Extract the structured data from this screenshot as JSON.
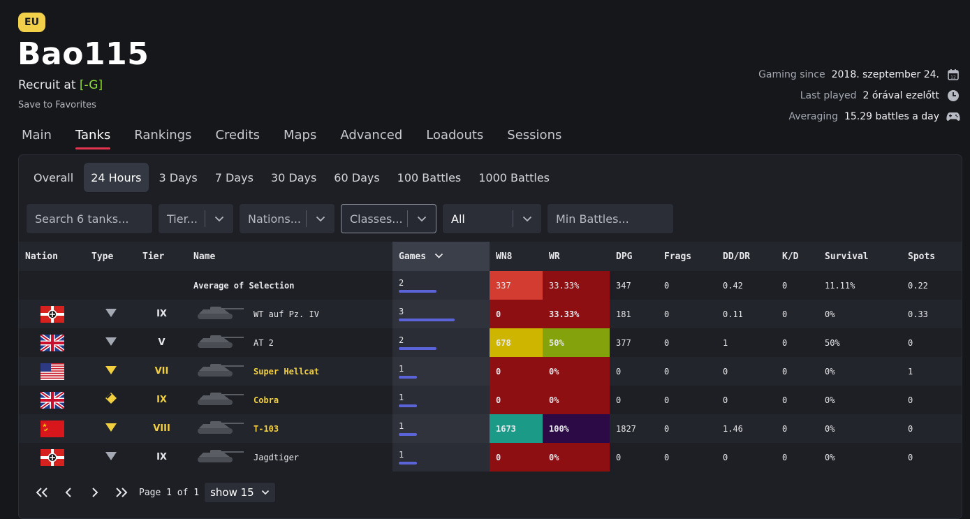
{
  "player": {
    "region": "EU",
    "name": "Bao115",
    "role_prefix": "Recruit at ",
    "clan": "[-G]",
    "save_label": "Save to Favorites"
  },
  "meta": [
    {
      "label": "Gaming since",
      "value": "2018. szeptember 24.",
      "icon": "calendar-icon"
    },
    {
      "label": "Last played",
      "value": "2 órával ezelőtt",
      "icon": "clock-icon"
    },
    {
      "label": "Averaging",
      "value": "15.29 battles a day",
      "icon": "gamepad-icon"
    }
  ],
  "main_tabs": [
    "Main",
    "Tanks",
    "Rankings",
    "Credits",
    "Maps",
    "Advanced",
    "Loadouts",
    "Sessions"
  ],
  "period_tabs": [
    "Overall",
    "24 Hours",
    "3 Days",
    "7 Days",
    "30 Days",
    "60 Days",
    "100 Battles",
    "1000 Battles"
  ],
  "filters": {
    "search_placeholder": "Search 6 tanks...",
    "tier": "Tier...",
    "nations": "Nations...",
    "classes": "Classes...",
    "premium": "All",
    "min_battles": "Min Battles..."
  },
  "table": {
    "headers": [
      "Nation",
      "Type",
      "Tier",
      "Name",
      "Games",
      "WN8",
      "WR",
      "DPG",
      "Frags",
      "DD/DR",
      "K/D",
      "Survival",
      "Spots"
    ],
    "average": {
      "name": "Average of Selection",
      "games": "2",
      "games_frac": 0.67,
      "wn8": "337",
      "wr": "33.33%",
      "dpg": "347",
      "frags": "0",
      "dddr": "0.42",
      "kd": "0",
      "survival": "11.11%",
      "spots": "0.22",
      "wn8_color": "#d23c31",
      "wr_color": "#8e0f12"
    },
    "rows": [
      {
        "nation": "germany",
        "type": "td",
        "tier": "IX",
        "name": "WT auf Pz. IV",
        "premium": false,
        "games": "3",
        "games_frac": 1.0,
        "wn8": "0",
        "wr": "33.33%",
        "dpg": "181",
        "frags": "0",
        "dddr": "0.11",
        "kd": "0",
        "survival": "0%",
        "spots": "0.33",
        "wn8_color": "#8e0f12",
        "wr_color": "#8e0f12"
      },
      {
        "nation": "uk",
        "type": "td",
        "tier": "V",
        "name": "AT 2",
        "premium": false,
        "games": "2",
        "games_frac": 0.67,
        "wn8": "678",
        "wr": "50%",
        "dpg": "377",
        "frags": "0",
        "dddr": "1",
        "kd": "0",
        "survival": "50%",
        "spots": "0",
        "wn8_color": "#cdb500",
        "wr_color": "#84a20b"
      },
      {
        "nation": "usa",
        "type": "td",
        "tier": "VII",
        "name": "Super Hellcat",
        "premium": true,
        "games": "1",
        "games_frac": 0.33,
        "wn8": "0",
        "wr": "0%",
        "dpg": "0",
        "frags": "0",
        "dddr": "0",
        "kd": "0",
        "survival": "0%",
        "spots": "1",
        "wn8_color": "#8e0f12",
        "wr_color": "#8e0f12"
      },
      {
        "nation": "uk",
        "type": "medium",
        "tier": "IX",
        "name": "Cobra",
        "premium": true,
        "games": "1",
        "games_frac": 0.33,
        "wn8": "0",
        "wr": "0%",
        "dpg": "0",
        "frags": "0",
        "dddr": "0",
        "kd": "0",
        "survival": "0%",
        "spots": "0",
        "wn8_color": "#8e0f12",
        "wr_color": "#8e0f12"
      },
      {
        "nation": "ussr",
        "type": "td",
        "tier": "VIII",
        "name": "T-103",
        "premium": true,
        "games": "1",
        "games_frac": 0.33,
        "wn8": "1673",
        "wr": "100%",
        "dpg": "1827",
        "frags": "0",
        "dddr": "1.46",
        "kd": "0",
        "survival": "0%",
        "spots": "0",
        "wn8_color": "#1c9a88",
        "wr_color": "#2c0a45"
      },
      {
        "nation": "germany",
        "type": "td",
        "tier": "IX",
        "name": "Jagdtiger",
        "premium": false,
        "games": "1",
        "games_frac": 0.33,
        "wn8": "0",
        "wr": "0%",
        "dpg": "0",
        "frags": "0",
        "dddr": "0",
        "kd": "0",
        "survival": "0%",
        "spots": "0",
        "wn8_color": "#8e0f12",
        "wr_color": "#8e0f12"
      }
    ]
  },
  "pager": {
    "page_text": "Page 1 of 1",
    "show_text": "show 15"
  },
  "colors": {
    "accent": "#e0344f",
    "gold": "#f2cf3f",
    "clan": "#8fdc3a",
    "bar": "#5a63d8"
  }
}
